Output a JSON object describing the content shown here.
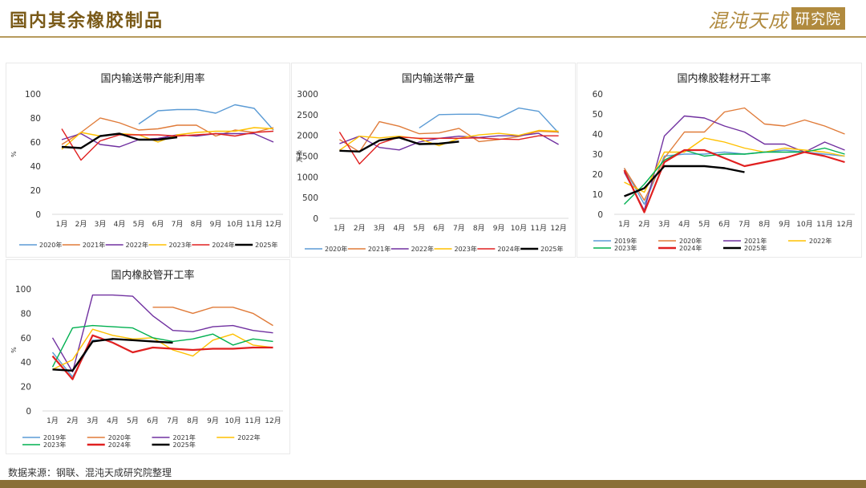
{
  "page": {
    "title": "国内其余橡胶制品",
    "brand_name": "混沌天成",
    "brand_box": "研究院",
    "source": "数据来源：钢联、混沌天成研究院整理"
  },
  "chart_data": [
    {
      "type": "line",
      "title": "国内输送带产能利用率",
      "ylabel": "%",
      "ylim": [
        0,
        100
      ],
      "yticks": [
        0,
        20,
        40,
        60,
        80,
        100
      ],
      "categories": [
        "1月",
        "2月",
        "3月",
        "4月",
        "5月",
        "6月",
        "7月",
        "8月",
        "9月",
        "10月",
        "11月",
        "12月"
      ],
      "legend_position": "bottom",
      "series": [
        {
          "name": "2020年",
          "color": "#5b9bd5",
          "values": [
            null,
            null,
            null,
            null,
            75,
            86,
            87,
            87,
            84,
            91,
            88,
            70
          ]
        },
        {
          "name": "2021年",
          "color": "#e07b39",
          "values": [
            58,
            68,
            80,
            76,
            70,
            71,
            74,
            74,
            65,
            70,
            68,
            72
          ]
        },
        {
          "name": "2022年",
          "color": "#7030a0",
          "values": [
            62,
            67,
            58,
            56,
            62,
            63,
            66,
            65,
            67,
            67,
            67,
            60
          ]
        },
        {
          "name": "2023年",
          "color": "#ffc000",
          "values": [
            54,
            68,
            65,
            67,
            66,
            60,
            66,
            68,
            69,
            69,
            72,
            71
          ]
        },
        {
          "name": "2024年",
          "color": "#e02020",
          "values": [
            71,
            45,
            61,
            66,
            66,
            66,
            65,
            66,
            67,
            65,
            68,
            69
          ]
        },
        {
          "name": "2025年",
          "color": "#000000",
          "values": [
            56,
            55,
            65,
            67,
            62,
            62,
            64,
            null,
            null,
            null,
            null,
            null
          ]
        }
      ]
    },
    {
      "type": "line",
      "title": "国内输送带产量",
      "ylabel": "万条",
      "ylim": [
        0,
        3000
      ],
      "yticks": [
        0,
        500,
        1000,
        1500,
        2000,
        2500,
        3000
      ],
      "categories": [
        "1月",
        "2月",
        "3月",
        "4月",
        "5月",
        "6月",
        "7月",
        "8月",
        "9月",
        "10月",
        "11月",
        "12月"
      ],
      "legend_position": "bottom",
      "series": [
        {
          "name": "2020年",
          "color": "#5b9bd5",
          "values": [
            null,
            null,
            null,
            null,
            2180,
            2500,
            2510,
            2510,
            2420,
            2660,
            2580,
            2060
          ]
        },
        {
          "name": "2021年",
          "color": "#e07b39",
          "values": [
            1900,
            1600,
            2330,
            2220,
            2040,
            2060,
            2170,
            1850,
            1900,
            1970,
            2100,
            2080
          ]
        },
        {
          "name": "2022年",
          "color": "#7030a0",
          "values": [
            1800,
            1980,
            1710,
            1650,
            1840,
            1930,
            1980,
            1950,
            1990,
            1990,
            2050,
            1780
          ]
        },
        {
          "name": "2023年",
          "color": "#ffc000",
          "values": [
            1640,
            1980,
            1940,
            1980,
            1920,
            1750,
            1930,
            2010,
            2050,
            2000,
            2120,
            2100
          ]
        },
        {
          "name": "2024年",
          "color": "#e02020",
          "values": [
            2080,
            1310,
            1800,
            1960,
            1930,
            1930,
            1930,
            1940,
            1910,
            1900,
            1990,
            1990
          ]
        },
        {
          "name": "2025年",
          "color": "#000000",
          "values": [
            1630,
            1610,
            1880,
            1950,
            1790,
            1800,
            1850,
            null,
            null,
            null,
            null,
            null
          ]
        }
      ]
    },
    {
      "type": "line",
      "title": "国内橡胶鞋材开工率",
      "ylabel": "",
      "ylim": [
        0,
        60
      ],
      "yticks": [
        0,
        10,
        20,
        30,
        40,
        50,
        60
      ],
      "categories": [
        "1月",
        "2月",
        "3月",
        "4月",
        "5月",
        "6月",
        "7月",
        "8月",
        "9月",
        "10月",
        "11月",
        "12月"
      ],
      "legend_position": "bottom",
      "series": [
        {
          "name": "2019年",
          "color": "#5b9bd5",
          "values": [
            23,
            5,
            29,
            30,
            30,
            31,
            30,
            31,
            32,
            31,
            30,
            29
          ]
        },
        {
          "name": "2020年",
          "color": "#e07b39",
          "values": [
            23,
            7,
            28,
            41,
            41,
            51,
            53,
            45,
            44,
            47,
            44,
            40
          ]
        },
        {
          "name": "2021年",
          "color": "#7030a0",
          "values": [
            21,
            2,
            39,
            49,
            48,
            44,
            41,
            35,
            35,
            31,
            36,
            32
          ]
        },
        {
          "name": "2022年",
          "color": "#ffc000",
          "values": [
            16,
            11,
            31,
            31,
            38,
            36,
            33,
            31,
            33,
            32,
            31,
            29
          ]
        },
        {
          "name": "2023年",
          "color": "#00b050",
          "values": [
            5,
            15,
            27,
            32,
            29,
            30,
            30,
            31,
            31,
            31,
            33,
            30
          ]
        },
        {
          "name": "2024年",
          "color": "#e02020",
          "values": [
            22,
            1,
            26,
            32,
            32,
            28,
            24,
            26,
            28,
            31,
            29,
            26
          ]
        },
        {
          "name": "2025年",
          "color": "#000000",
          "values": [
            9,
            13,
            24,
            24,
            24,
            23,
            21,
            null,
            null,
            null,
            null,
            null
          ]
        }
      ]
    },
    {
      "type": "line",
      "title": "国内橡胶管开工率",
      "ylabel": "%",
      "ylim": [
        0,
        100
      ],
      "yticks": [
        0,
        20,
        40,
        60,
        80,
        100
      ],
      "categories": [
        "1月",
        "2月",
        "3月",
        "4月",
        "5月",
        "6月",
        "7月",
        "8月",
        "9月",
        "10月",
        "11月",
        "12月"
      ],
      "legend_position": "bottom",
      "series": [
        {
          "name": "2019年",
          "color": "#5b9bd5",
          "values": [
            48,
            28,
            58,
            58,
            null,
            null,
            null,
            null,
            null,
            null,
            null,
            null
          ]
        },
        {
          "name": "2020年",
          "color": "#e07b39",
          "values": [
            null,
            null,
            null,
            null,
            null,
            85,
            85,
            80,
            85,
            85,
            80,
            70
          ]
        },
        {
          "name": "2021年",
          "color": "#7030a0",
          "values": [
            60,
            32,
            95,
            95,
            94,
            78,
            66,
            65,
            69,
            70,
            66,
            64
          ]
        },
        {
          "name": "2022年",
          "color": "#ffc000",
          "values": [
            34,
            42,
            67,
            62,
            59,
            60,
            50,
            45,
            58,
            63,
            54,
            52
          ]
        },
        {
          "name": "2023年",
          "color": "#00b050",
          "values": [
            36,
            68,
            70,
            69,
            68,
            60,
            57,
            59,
            63,
            54,
            59,
            57
          ]
        },
        {
          "name": "2024年",
          "color": "#e02020",
          "values": [
            45,
            26,
            62,
            56,
            48,
            52,
            51,
            50,
            51,
            51,
            52,
            52
          ]
        },
        {
          "name": "2025年",
          "color": "#000000",
          "values": [
            34,
            33,
            57,
            59,
            58,
            57,
            56,
            null,
            null,
            null,
            null,
            null
          ]
        }
      ]
    }
  ]
}
